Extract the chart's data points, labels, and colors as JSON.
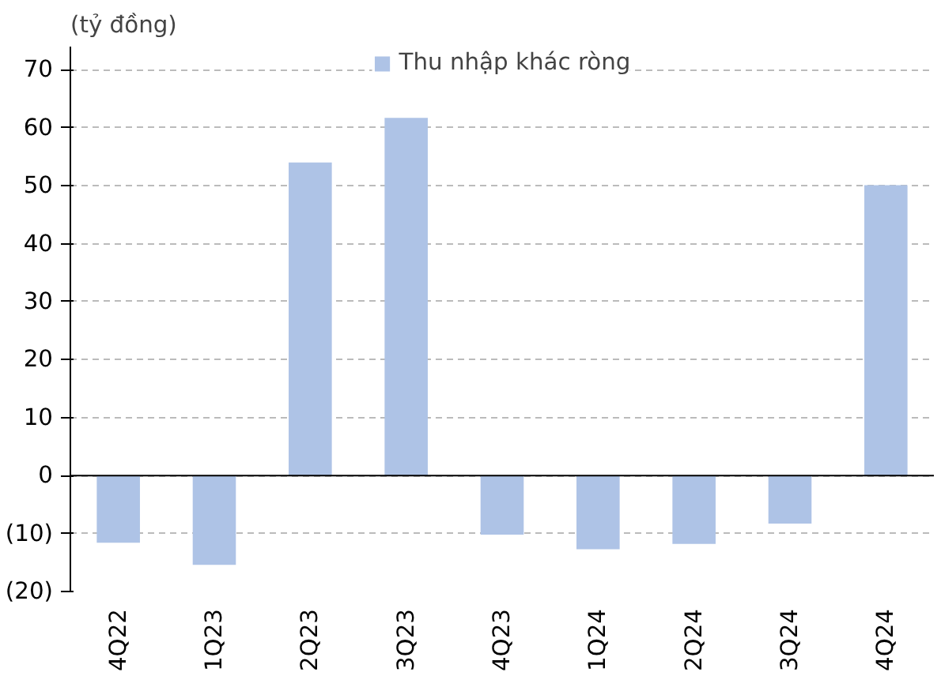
{
  "chart_data": {
    "type": "bar",
    "ylabel": "(tỷ đồng)",
    "categories": [
      "4Q22",
      "1Q23",
      "2Q23",
      "3Q23",
      "4Q23",
      "1Q24",
      "2Q24",
      "3Q24",
      "4Q24"
    ],
    "series": [
      {
        "name": "Thu nhập khác ròng",
        "color": "#aec3e6",
        "values": [
          -11.6,
          -15.4,
          54,
          61.7,
          -10.2,
          -12.7,
          -11.8,
          -8.3,
          50.1
        ]
      }
    ],
    "ylim": [
      -20,
      70
    ],
    "yticks": [
      {
        "value": -20,
        "label": "(20)"
      },
      {
        "value": -10,
        "label": "(10)"
      },
      0,
      10,
      20,
      30,
      40,
      50,
      60,
      70
    ],
    "grid": "y",
    "legend": "top"
  }
}
